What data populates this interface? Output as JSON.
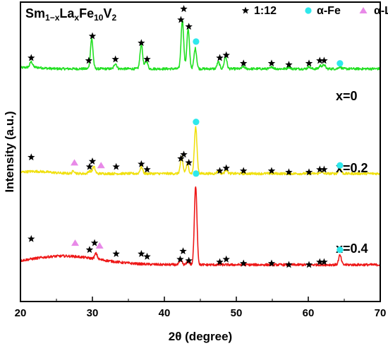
{
  "chart_data": {
    "type": "line",
    "title_parts": {
      "a": "Sm",
      "a_sub": "1−x",
      "b": "La",
      "b_sub": "x",
      "c": "Fe",
      "c_sub": "10",
      "d": "V",
      "d_sub": "2"
    },
    "xlabel": "2θ (degree)",
    "ylabel": "Intensity (a.u.)",
    "xlim": [
      20,
      70
    ],
    "xticks": [
      20,
      30,
      40,
      50,
      60,
      70
    ],
    "yticks_shown": false,
    "legend": {
      "placement": "top-right",
      "entries": [
        {
          "symbol": "star",
          "label": "1:12",
          "color": "#000000"
        },
        {
          "symbol": "circle",
          "label": "α-Fe",
          "color": "#2ee8ec"
        },
        {
          "symbol": "triangle",
          "label": "α-La",
          "color": "#e889e8"
        }
      ]
    },
    "series": [
      {
        "label": "x=0",
        "color": "#22e022",
        "baseline": 85.5,
        "peaks": [
          {
            "x": 21.5,
            "h": 2
          },
          {
            "x": 29.9,
            "h": 11
          },
          {
            "x": 33.2,
            "h": 2
          },
          {
            "x": 36.8,
            "h": 9
          },
          {
            "x": 37.5,
            "h": 3
          },
          {
            "x": 42.5,
            "h": 18
          },
          {
            "x": 43.3,
            "h": 14.5
          },
          {
            "x": 44.3,
            "h": 7.5
          },
          {
            "x": 47.5,
            "h": 2.5
          },
          {
            "x": 48.5,
            "h": 4.5
          },
          {
            "x": 51.0,
            "h": 0.8
          },
          {
            "x": 55.0,
            "h": 0.7
          },
          {
            "x": 57.3,
            "h": 0.7
          },
          {
            "x": 60.1,
            "h": 0.8
          },
          {
            "x": 61.7,
            "h": 1.2
          },
          {
            "x": 62.2,
            "h": 1.4
          },
          {
            "x": 64.4,
            "h": 0.8
          }
        ],
        "markers": [
          {
            "symbol": "star",
            "x": 21.5,
            "y": 89.5
          },
          {
            "symbol": "star",
            "x": 29.5,
            "y": 88.5
          },
          {
            "symbol": "star",
            "x": 30.0,
            "y": 97.5
          },
          {
            "symbol": "star",
            "x": 33.2,
            "y": 89.0
          },
          {
            "symbol": "star",
            "x": 36.8,
            "y": 95.0
          },
          {
            "symbol": "star",
            "x": 37.6,
            "y": 89.0
          },
          {
            "symbol": "star",
            "x": 42.3,
            "y": 103.5
          },
          {
            "symbol": "star",
            "x": 42.7,
            "y": 107.5
          },
          {
            "symbol": "star",
            "x": 43.4,
            "y": 101.0
          },
          {
            "symbol": "circle",
            "x": 44.4,
            "y": 95.5
          },
          {
            "symbol": "star",
            "x": 47.7,
            "y": 89.5
          },
          {
            "symbol": "star",
            "x": 48.6,
            "y": 90.5
          },
          {
            "symbol": "star",
            "x": 51.0,
            "y": 87.5
          },
          {
            "symbol": "star",
            "x": 54.9,
            "y": 87.5
          },
          {
            "symbol": "star",
            "x": 57.3,
            "y": 87.0
          },
          {
            "symbol": "star",
            "x": 60.1,
            "y": 87.5
          },
          {
            "symbol": "star",
            "x": 61.6,
            "y": 88.5
          },
          {
            "symbol": "star",
            "x": 62.2,
            "y": 88.5
          },
          {
            "symbol": "circle",
            "x": 64.4,
            "y": 87.5
          }
        ]
      },
      {
        "label": "x=0.2",
        "color": "#f0e010",
        "baseline": 47,
        "peaks": [
          {
            "x": 27.4,
            "h": 1
          },
          {
            "x": 29.6,
            "h": 1
          },
          {
            "x": 30.2,
            "h": 2.5
          },
          {
            "x": 36.8,
            "h": 2.5
          },
          {
            "x": 42.4,
            "h": 6
          },
          {
            "x": 43.2,
            "h": 3.5
          },
          {
            "x": 44.35,
            "h": 17
          },
          {
            "x": 47.5,
            "h": 1
          },
          {
            "x": 48.6,
            "h": 1.5
          },
          {
            "x": 61.8,
            "h": 0.6
          },
          {
            "x": 64.4,
            "h": 2
          }
        ],
        "markers": [
          {
            "symbol": "star",
            "x": 21.5,
            "y": 53.0
          },
          {
            "symbol": "triangle",
            "x": 27.5,
            "y": 51.0
          },
          {
            "symbol": "star",
            "x": 29.6,
            "y": 49.5
          },
          {
            "symbol": "star",
            "x": 30.0,
            "y": 51.5
          },
          {
            "symbol": "triangle",
            "x": 31.2,
            "y": 50.0
          },
          {
            "symbol": "star",
            "x": 33.3,
            "y": 49.5
          },
          {
            "symbol": "star",
            "x": 36.8,
            "y": 50.5
          },
          {
            "symbol": "star",
            "x": 37.6,
            "y": 48.5
          },
          {
            "symbol": "star",
            "x": 42.3,
            "y": 52.5
          },
          {
            "symbol": "star",
            "x": 42.7,
            "y": 54.0
          },
          {
            "symbol": "star",
            "x": 43.4,
            "y": 51.0
          },
          {
            "symbol": "circle",
            "x": 44.4,
            "y": 66.0
          },
          {
            "symbol": "star",
            "x": 47.7,
            "y": 48.0
          },
          {
            "symbol": "star",
            "x": 48.6,
            "y": 49.0
          },
          {
            "symbol": "star",
            "x": 51.0,
            "y": 48.0
          },
          {
            "symbol": "star",
            "x": 54.9,
            "y": 48.0
          },
          {
            "symbol": "star",
            "x": 57.3,
            "y": 47.5
          },
          {
            "symbol": "star",
            "x": 60.1,
            "y": 47.5
          },
          {
            "symbol": "star",
            "x": 61.6,
            "y": 48.5
          },
          {
            "symbol": "star",
            "x": 62.2,
            "y": 48.5
          },
          {
            "symbol": "circle",
            "x": 64.4,
            "y": 50.0
          }
        ]
      },
      {
        "label": "x=0.4",
        "color": "#ee1818",
        "baseline": 13.5,
        "peaks": [
          {
            "x": 30.5,
            "h": 2
          },
          {
            "x": 42.3,
            "h": 1.5
          },
          {
            "x": 43.3,
            "h": 1.2
          },
          {
            "x": 44.35,
            "h": 29
          },
          {
            "x": 64.4,
            "h": 3.5
          }
        ],
        "markers": [
          {
            "symbol": "star",
            "x": 21.5,
            "y": 23.0
          },
          {
            "symbol": "triangle",
            "x": 27.6,
            "y": 21.5
          },
          {
            "symbol": "star",
            "x": 29.6,
            "y": 19.0
          },
          {
            "symbol": "star",
            "x": 30.3,
            "y": 21.5
          },
          {
            "symbol": "triangle",
            "x": 31.0,
            "y": 20.5
          },
          {
            "symbol": "star",
            "x": 33.3,
            "y": 17.5
          },
          {
            "symbol": "star",
            "x": 36.8,
            "y": 17.5
          },
          {
            "symbol": "star",
            "x": 37.6,
            "y": 16.5
          },
          {
            "symbol": "star",
            "x": 42.2,
            "y": 15.5
          },
          {
            "symbol": "star",
            "x": 42.6,
            "y": 18.5
          },
          {
            "symbol": "star",
            "x": 43.4,
            "y": 15.0
          },
          {
            "symbol": "circle",
            "x": 44.4,
            "y": 47.0
          },
          {
            "symbol": "star",
            "x": 47.7,
            "y": 14.5
          },
          {
            "symbol": "star",
            "x": 48.6,
            "y": 15.5
          },
          {
            "symbol": "star",
            "x": 51.0,
            "y": 14.0
          },
          {
            "symbol": "star",
            "x": 54.9,
            "y": 14.0
          },
          {
            "symbol": "star",
            "x": 57.3,
            "y": 13.5
          },
          {
            "symbol": "star",
            "x": 60.1,
            "y": 13.5
          },
          {
            "symbol": "star",
            "x": 61.6,
            "y": 14.5
          },
          {
            "symbol": "star",
            "x": 62.2,
            "y": 14.5
          },
          {
            "symbol": "circle",
            "x": 64.4,
            "y": 19.0
          }
        ]
      }
    ]
  }
}
